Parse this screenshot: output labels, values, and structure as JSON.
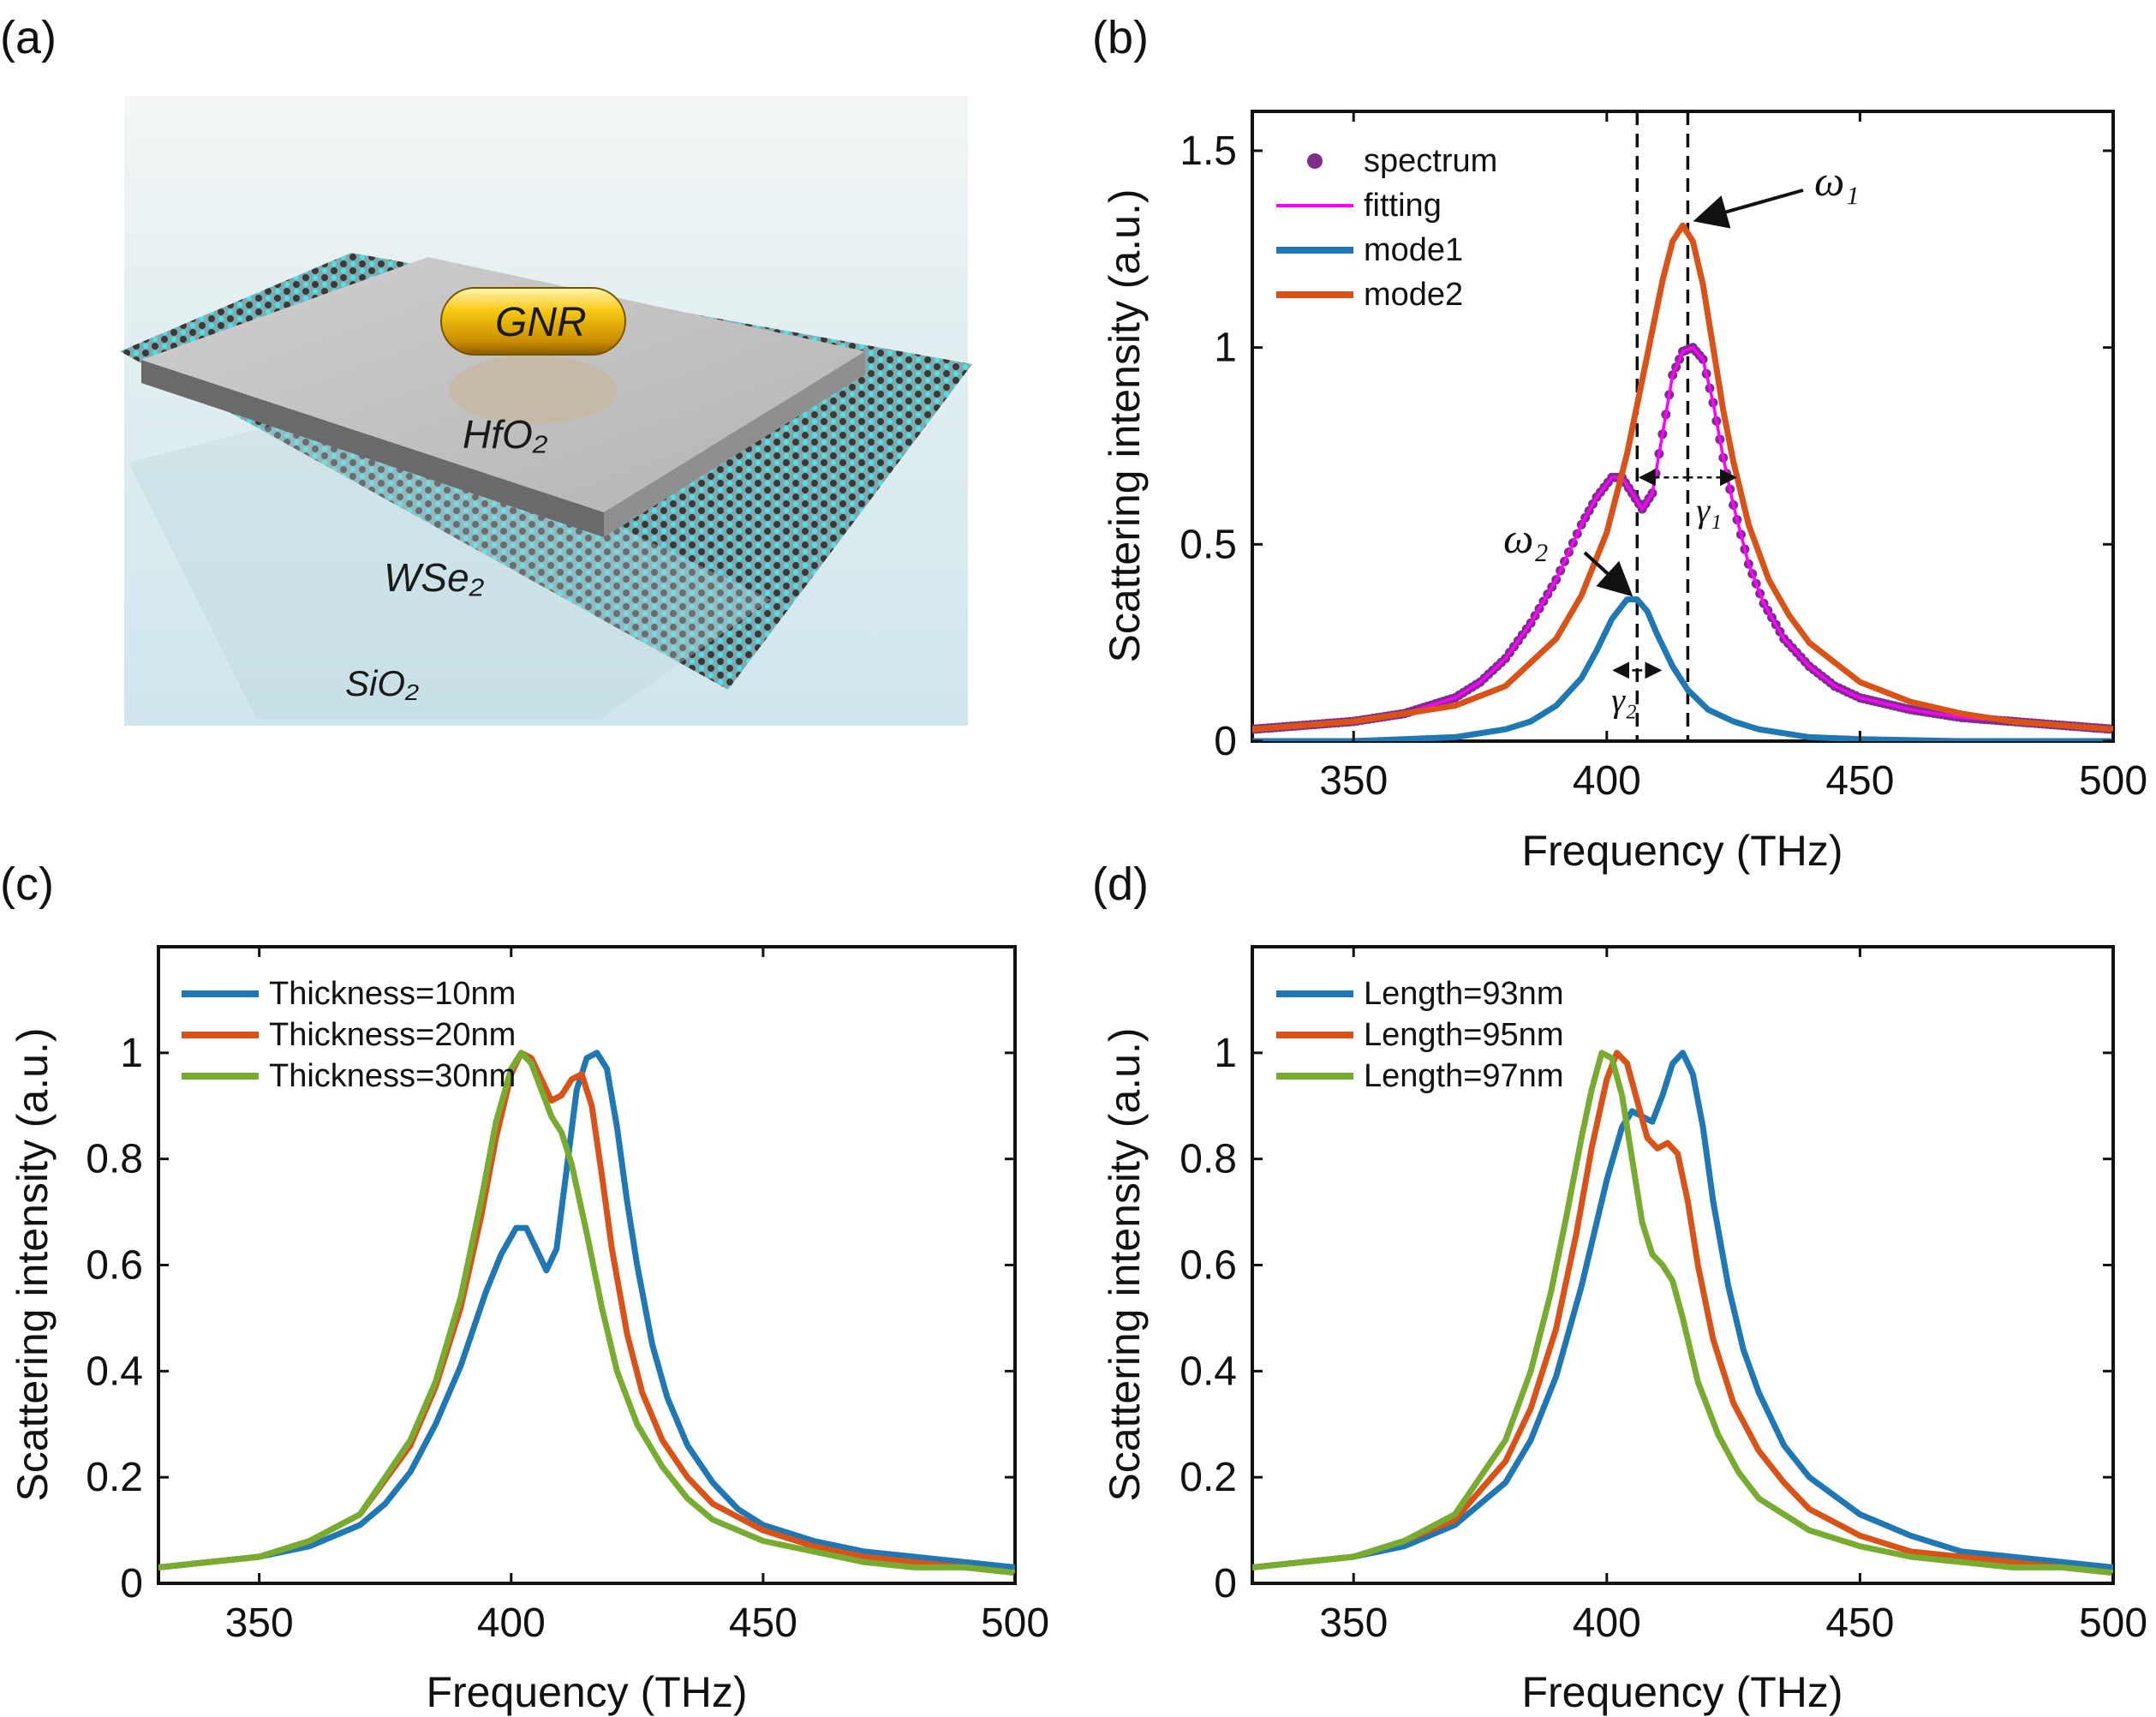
{
  "panels": {
    "a": {
      "label": "(a)",
      "texts": {
        "gnr": "GNR",
        "hfo2": "HfO₂",
        "wse2": "WSe₂",
        "sio2": "SiO₂"
      }
    },
    "b": {
      "label": "(b)"
    },
    "c": {
      "label": "(c)"
    },
    "d": {
      "label": "(d)"
    }
  },
  "colors": {
    "blue": "#1f77b4",
    "orange": "#d95319",
    "green": "#77ac30",
    "magenta": "#ff00ff",
    "purple": "#7e2f8e"
  },
  "chart_data": [
    {
      "id": "b",
      "type": "line",
      "xlabel": "Frequency (THz)",
      "ylabel": "Scattering intensity (a.u.)",
      "xlim": [
        330,
        500
      ],
      "ylim": [
        0,
        1.6
      ],
      "xticks": [
        350,
        400,
        450,
        500
      ],
      "yticks": [
        0,
        0.5,
        1,
        1.5
      ],
      "ytick_labels": [
        "0",
        "0.5",
        "1",
        "1.5"
      ],
      "legend": "top-left",
      "series": [
        {
          "name": "spectrum",
          "style": "dots",
          "color": "#7e2f8e",
          "x": [
            330,
            340,
            350,
            360,
            370,
            375,
            380,
            385,
            390,
            395,
            398,
            401,
            403,
            405,
            407,
            409,
            411,
            413,
            415,
            417,
            419,
            421,
            423,
            425,
            428,
            431,
            435,
            440,
            445,
            450,
            460,
            470,
            480,
            490,
            500
          ],
          "y": [
            0.03,
            0.04,
            0.05,
            0.07,
            0.11,
            0.15,
            0.21,
            0.3,
            0.41,
            0.55,
            0.62,
            0.67,
            0.67,
            0.63,
            0.59,
            0.63,
            0.78,
            0.93,
            0.99,
            1.0,
            0.97,
            0.86,
            0.72,
            0.6,
            0.45,
            0.35,
            0.26,
            0.19,
            0.14,
            0.11,
            0.08,
            0.06,
            0.05,
            0.04,
            0.03
          ]
        },
        {
          "name": "fitting",
          "style": "line",
          "color": "#ff00ff",
          "x": [
            330,
            340,
            350,
            360,
            370,
            375,
            380,
            385,
            390,
            395,
            398,
            401,
            403,
            405,
            407,
            409,
            411,
            413,
            415,
            417,
            419,
            421,
            423,
            425,
            428,
            431,
            435,
            440,
            445,
            450,
            460,
            470,
            480,
            490,
            500
          ],
          "y": [
            0.03,
            0.04,
            0.05,
            0.07,
            0.11,
            0.15,
            0.21,
            0.3,
            0.41,
            0.55,
            0.62,
            0.67,
            0.67,
            0.63,
            0.59,
            0.63,
            0.78,
            0.93,
            0.99,
            1.0,
            0.97,
            0.86,
            0.72,
            0.6,
            0.45,
            0.35,
            0.26,
            0.19,
            0.14,
            0.11,
            0.08,
            0.06,
            0.05,
            0.04,
            0.03
          ]
        },
        {
          "name": "mode1",
          "style": "line",
          "color": "#1f77b4",
          "x": [
            330,
            350,
            370,
            380,
            385,
            390,
            395,
            398,
            401,
            404,
            406,
            408,
            410,
            413,
            416,
            420,
            425,
            430,
            440,
            450,
            470,
            500
          ],
          "y": [
            0.0,
            0.0,
            0.01,
            0.03,
            0.05,
            0.09,
            0.16,
            0.23,
            0.31,
            0.36,
            0.36,
            0.33,
            0.27,
            0.19,
            0.13,
            0.08,
            0.05,
            0.03,
            0.01,
            0.005,
            0.0,
            0.0
          ]
        },
        {
          "name": "mode2",
          "style": "line",
          "color": "#d95319",
          "x": [
            330,
            350,
            370,
            380,
            390,
            395,
            400,
            404,
            408,
            411,
            413,
            415,
            417,
            419,
            421,
            423,
            425,
            428,
            432,
            436,
            440,
            450,
            460,
            470,
            480,
            490,
            500
          ],
          "y": [
            0.03,
            0.05,
            0.09,
            0.14,
            0.26,
            0.37,
            0.53,
            0.73,
            0.98,
            1.17,
            1.27,
            1.31,
            1.27,
            1.16,
            1.0,
            0.84,
            0.71,
            0.55,
            0.41,
            0.32,
            0.25,
            0.15,
            0.1,
            0.07,
            0.05,
            0.04,
            0.03
          ]
        }
      ],
      "vlines": [
        406,
        416
      ],
      "annotations": [
        {
          "text": "ω₁"
        },
        {
          "text": "ω₂"
        },
        {
          "text": "γ₁"
        },
        {
          "text": "γ₂"
        }
      ]
    },
    {
      "id": "c",
      "type": "line",
      "xlabel": "Frequency (THz)",
      "ylabel": "Scattering intensity (a.u.)",
      "xlim": [
        330,
        500
      ],
      "ylim": [
        0,
        1.2
      ],
      "xticks": [
        350,
        400,
        450,
        500
      ],
      "yticks": [
        0,
        0.2,
        0.4,
        0.6,
        0.8,
        1
      ],
      "ytick_labels": [
        "0",
        "0.2",
        "0.4",
        "0.6",
        "0.8",
        "1"
      ],
      "legend": "top-left",
      "series": [
        {
          "name": "Thickness=10nm",
          "color": "#1f77b4",
          "x": [
            330,
            340,
            350,
            360,
            370,
            375,
            380,
            385,
            390,
            395,
            398,
            401,
            403,
            405,
            407,
            409,
            411,
            413,
            415,
            417,
            419,
            421,
            423,
            425,
            428,
            431,
            435,
            440,
            445,
            450,
            460,
            470,
            480,
            490,
            500
          ],
          "y": [
            0.03,
            0.04,
            0.05,
            0.07,
            0.11,
            0.15,
            0.21,
            0.3,
            0.41,
            0.55,
            0.62,
            0.67,
            0.67,
            0.63,
            0.59,
            0.63,
            0.78,
            0.93,
            0.99,
            1.0,
            0.97,
            0.86,
            0.72,
            0.6,
            0.45,
            0.35,
            0.26,
            0.19,
            0.14,
            0.11,
            0.08,
            0.06,
            0.05,
            0.04,
            0.03
          ]
        },
        {
          "name": "Thickness=20nm",
          "color": "#d95319",
          "x": [
            330,
            340,
            350,
            360,
            370,
            380,
            385,
            390,
            394,
            397,
            400,
            402,
            404,
            406,
            408,
            410,
            412,
            414,
            416,
            418,
            420,
            423,
            426,
            430,
            435,
            440,
            450,
            460,
            470,
            480,
            490,
            500
          ],
          "y": [
            0.03,
            0.04,
            0.05,
            0.08,
            0.13,
            0.26,
            0.37,
            0.52,
            0.69,
            0.84,
            0.96,
            1.0,
            0.99,
            0.95,
            0.91,
            0.92,
            0.95,
            0.96,
            0.9,
            0.77,
            0.63,
            0.47,
            0.36,
            0.27,
            0.2,
            0.15,
            0.1,
            0.07,
            0.05,
            0.04,
            0.03,
            0.02
          ]
        },
        {
          "name": "Thickness=30nm",
          "color": "#77ac30",
          "x": [
            330,
            340,
            350,
            360,
            370,
            380,
            385,
            390,
            394,
            397,
            400,
            402,
            404,
            406,
            408,
            410,
            412,
            415,
            418,
            421,
            425,
            430,
            435,
            440,
            450,
            460,
            470,
            480,
            490,
            500
          ],
          "y": [
            0.03,
            0.04,
            0.05,
            0.08,
            0.13,
            0.27,
            0.38,
            0.54,
            0.72,
            0.87,
            0.97,
            1.0,
            0.98,
            0.93,
            0.88,
            0.85,
            0.79,
            0.66,
            0.52,
            0.4,
            0.3,
            0.22,
            0.16,
            0.12,
            0.08,
            0.06,
            0.04,
            0.03,
            0.03,
            0.02
          ]
        }
      ]
    },
    {
      "id": "d",
      "type": "line",
      "xlabel": "Frequency (THz)",
      "ylabel": "Scattering intensity (a.u.)",
      "xlim": [
        330,
        500
      ],
      "ylim": [
        0,
        1.2
      ],
      "xticks": [
        350,
        400,
        450,
        500
      ],
      "yticks": [
        0,
        0.2,
        0.4,
        0.6,
        0.8,
        1
      ],
      "ytick_labels": [
        "0",
        "0.2",
        "0.4",
        "0.6",
        "0.8",
        "1"
      ],
      "legend": "top-left",
      "series": [
        {
          "name": "Length=93nm",
          "color": "#1f77b4",
          "x": [
            330,
            340,
            350,
            360,
            370,
            380,
            385,
            390,
            395,
            400,
            403,
            405,
            407,
            409,
            411,
            413,
            415,
            417,
            419,
            421,
            424,
            427,
            430,
            435,
            440,
            450,
            460,
            470,
            480,
            490,
            500
          ],
          "y": [
            0.03,
            0.04,
            0.05,
            0.07,
            0.11,
            0.19,
            0.27,
            0.39,
            0.56,
            0.76,
            0.86,
            0.89,
            0.88,
            0.87,
            0.92,
            0.98,
            1.0,
            0.96,
            0.86,
            0.72,
            0.56,
            0.44,
            0.36,
            0.26,
            0.2,
            0.13,
            0.09,
            0.06,
            0.05,
            0.04,
            0.03
          ]
        },
        {
          "name": "Length=95nm",
          "color": "#d95319",
          "x": [
            330,
            340,
            350,
            360,
            370,
            380,
            385,
            390,
            394,
            397,
            400,
            402,
            404,
            406,
            408,
            410,
            412,
            414,
            416,
            418,
            421,
            425,
            430,
            435,
            440,
            450,
            460,
            470,
            480,
            490,
            500
          ],
          "y": [
            0.03,
            0.04,
            0.05,
            0.08,
            0.12,
            0.23,
            0.33,
            0.48,
            0.66,
            0.82,
            0.95,
            1.0,
            0.98,
            0.91,
            0.84,
            0.82,
            0.83,
            0.81,
            0.72,
            0.6,
            0.46,
            0.34,
            0.25,
            0.19,
            0.14,
            0.09,
            0.06,
            0.05,
            0.04,
            0.03,
            0.02
          ]
        },
        {
          "name": "Length=97nm",
          "color": "#77ac30",
          "x": [
            330,
            340,
            350,
            360,
            370,
            380,
            385,
            389,
            392,
            395,
            397,
            399,
            401,
            403,
            405,
            407,
            409,
            411,
            413,
            415,
            418,
            422,
            426,
            430,
            435,
            440,
            450,
            460,
            470,
            480,
            490,
            500
          ],
          "y": [
            0.03,
            0.04,
            0.05,
            0.08,
            0.13,
            0.27,
            0.4,
            0.55,
            0.69,
            0.84,
            0.93,
            1.0,
            0.99,
            0.92,
            0.8,
            0.68,
            0.62,
            0.6,
            0.57,
            0.5,
            0.38,
            0.28,
            0.21,
            0.16,
            0.13,
            0.1,
            0.07,
            0.05,
            0.04,
            0.03,
            0.03,
            0.02
          ]
        }
      ]
    }
  ]
}
